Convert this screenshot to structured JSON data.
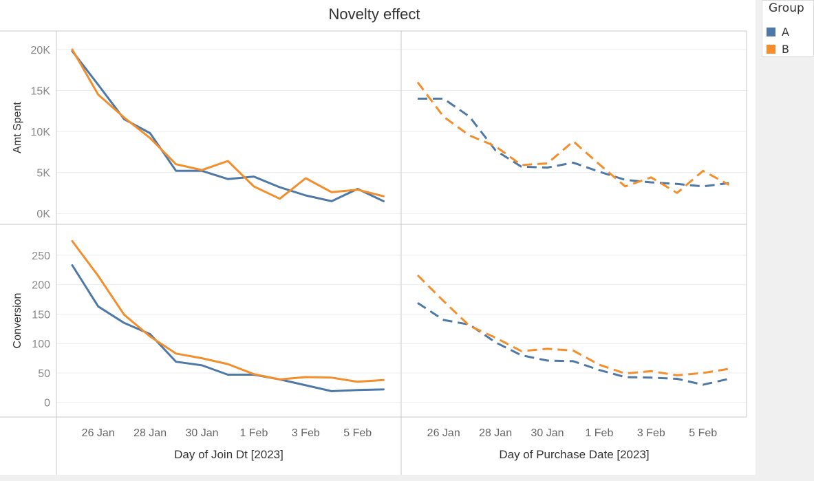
{
  "title": "Novelty effect",
  "legend": {
    "title": "Group",
    "items": [
      {
        "label": "A",
        "color": "#4e79a7"
      },
      {
        "label": "B",
        "color": "#f28e2b"
      }
    ]
  },
  "chart_data": {
    "type": "line",
    "title": "Novelty effect",
    "grid": true,
    "legend_position": "top-right",
    "x_ticks": [
      "26 Jan",
      "28 Jan",
      "30 Jan",
      "1 Feb",
      "3 Feb",
      "5 Feb"
    ],
    "x_dates": [
      "2023-01-25",
      "2023-01-26",
      "2023-01-27",
      "2023-01-28",
      "2023-01-29",
      "2023-01-30",
      "2023-01-31",
      "2023-02-01",
      "2023-02-02",
      "2023-02-03",
      "2023-02-04",
      "2023-02-05",
      "2023-02-06"
    ],
    "columns": [
      {
        "xlabel": "Day of Join Dt [2023]",
        "line_style": "solid"
      },
      {
        "xlabel": "Day of Purchase Date [2023]",
        "line_style": "dashed"
      }
    ],
    "rows": [
      {
        "ylabel": "Amt Spent",
        "y_ticks": [
          "0K",
          "5K",
          "10K",
          "15K",
          "20K"
        ],
        "ylim": [
          -400,
          21000
        ]
      },
      {
        "ylabel": "Conversion",
        "y_ticks": [
          "0",
          "50",
          "100",
          "150",
          "200",
          "250"
        ],
        "ylim": [
          -12,
          285
        ]
      }
    ],
    "panels": [
      {
        "row": 0,
        "col": 0,
        "series": [
          {
            "name": "A",
            "color": "#4e79a7",
            "values": [
              19800,
              15700,
              11500,
              9800,
              5200,
              5200,
              4200,
              4500,
              3200,
              2200,
              1500,
              3000,
              1500
            ]
          },
          {
            "name": "B",
            "color": "#f28e2b",
            "values": [
              20000,
              14500,
              11700,
              9200,
              6000,
              5300,
              6400,
              3300,
              1800,
              4300,
              2600,
              2900,
              2100
            ]
          }
        ]
      },
      {
        "row": 0,
        "col": 1,
        "series": [
          {
            "name": "A",
            "color": "#4e79a7",
            "values": [
              14000,
              14000,
              11800,
              7700,
              5700,
              5600,
              6200,
              5100,
              4100,
              3800,
              3600,
              3300,
              3700
            ]
          },
          {
            "name": "B",
            "color": "#f28e2b",
            "values": [
              16000,
              11800,
              9500,
              8200,
              5900,
              6100,
              8800,
              6000,
              3300,
              4400,
              2500,
              5200,
              3500
            ]
          }
        ]
      },
      {
        "row": 1,
        "col": 0,
        "series": [
          {
            "name": "A",
            "color": "#4e79a7",
            "values": [
              233,
              163,
              135,
              116,
              69,
              63,
              47,
              47,
              39,
              29,
              19,
              21,
              22
            ]
          },
          {
            "name": "B",
            "color": "#f28e2b",
            "values": [
              274,
              215,
              149,
              112,
              83,
              75,
              65,
              48,
              39,
              43,
              42,
              35,
              38
            ]
          }
        ]
      },
      {
        "row": 1,
        "col": 1,
        "series": [
          {
            "name": "A",
            "color": "#4e79a7",
            "values": [
              169,
              140,
              132,
              102,
              80,
              71,
              70,
              55,
              43,
              42,
              40,
              30,
              40
            ]
          },
          {
            "name": "B",
            "color": "#f28e2b",
            "values": [
              216,
              172,
              130,
              110,
              87,
              91,
              88,
              64,
              49,
              53,
              46,
              50,
              57
            ]
          }
        ]
      }
    ]
  }
}
